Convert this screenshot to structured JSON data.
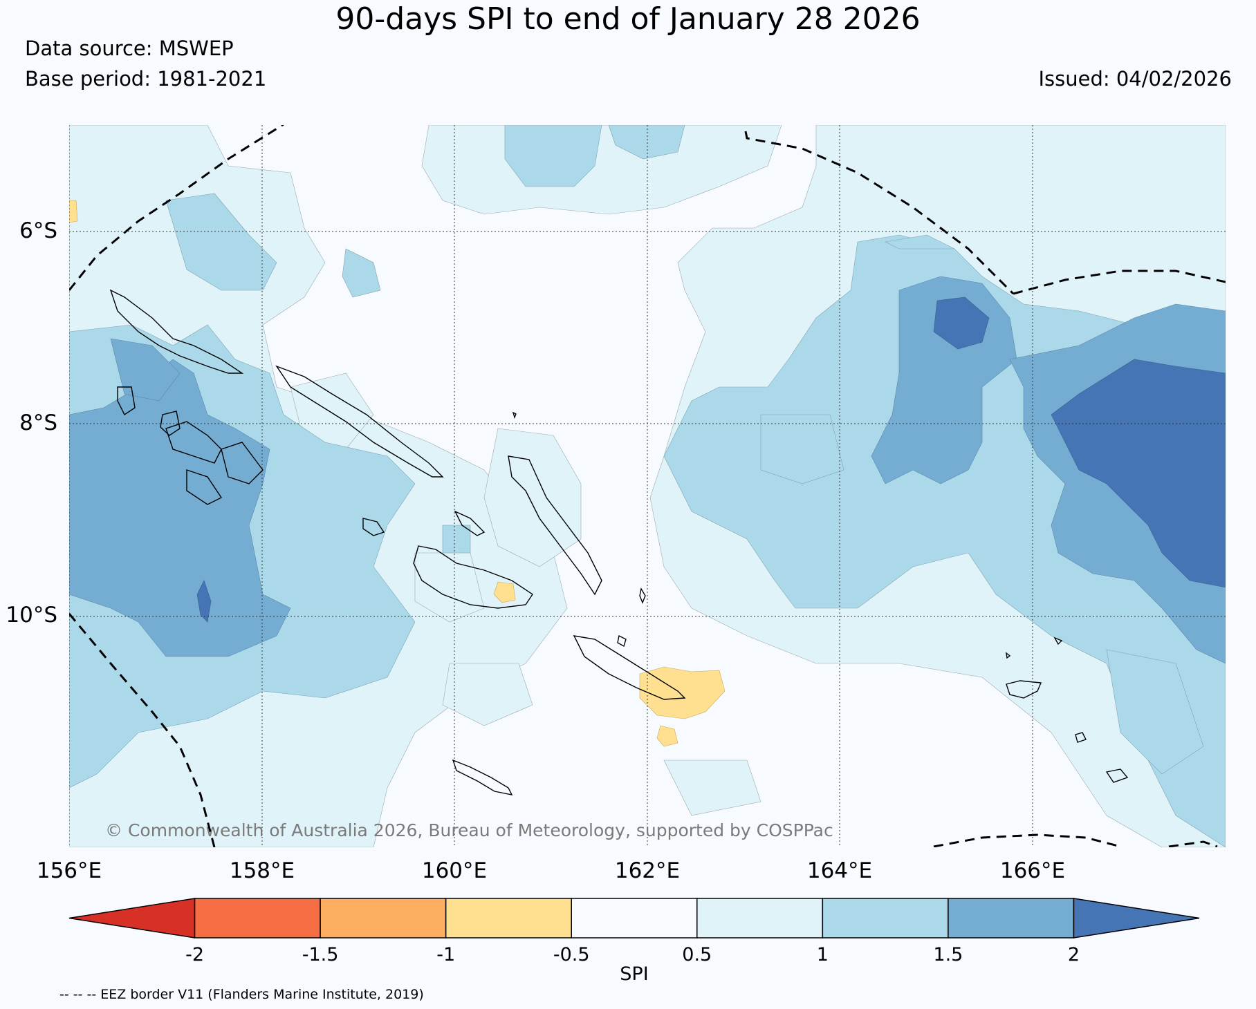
{
  "title": "90-days SPI to end of January 28 2026",
  "data_source": "Data source: MSWEP",
  "base_period": "Base period: 1981-2021",
  "issued": "Issued: 04/02/2026",
  "map": {
    "lat_labels": [
      "6°S",
      "8°S",
      "10°S"
    ],
    "lon_labels": [
      "156°E",
      "158°E",
      "160°E",
      "162°E",
      "164°E",
      "166°E"
    ],
    "copyright": "© Commonwealth of Australia 2026, Bureau of Meteorology, supported by COSPPac"
  },
  "colorbar": {
    "label": "SPI",
    "ticks": [
      "-2",
      "-1.5",
      "-1",
      "-0.5",
      "0.5",
      "1",
      "1.5",
      "2"
    ],
    "colors": [
      "#d73027",
      "#f46d43",
      "#fdae61",
      "#fee090",
      "#f7fbff",
      "#e0f3f8",
      "#abd9e9",
      "#74add1",
      "#4575b4"
    ]
  },
  "eez_note": "-- -- -- EEZ border V11 (Flanders Marine Institute, 2019)",
  "colors": {
    "background": "#f7fbff",
    "spi_05_1": "#e0f3f8",
    "spi_1_15": "#abd9e9",
    "spi_15_2": "#74add1",
    "spi_gt2": "#4575b4",
    "spi_m1_m05": "#fee090"
  }
}
